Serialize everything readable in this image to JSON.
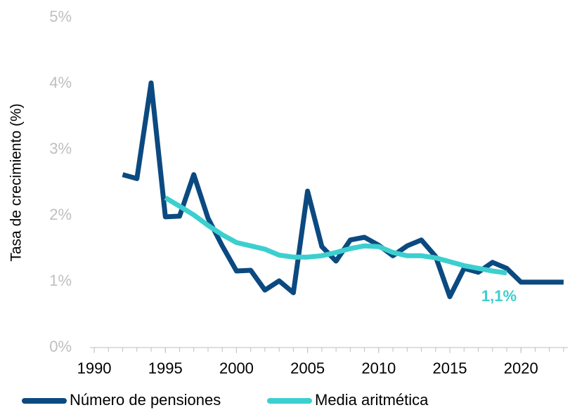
{
  "chart_data": {
    "type": "line",
    "y_label": "Tasa de crecimiento (%)",
    "x": [
      1992,
      1993,
      1994,
      1995,
      1996,
      1997,
      1998,
      1999,
      2000,
      2001,
      2002,
      2003,
      2004,
      2005,
      2006,
      2007,
      2008,
      2009,
      2010,
      2011,
      2012,
      2013,
      2014,
      2015,
      2016,
      2017,
      2018,
      2019,
      2020,
      2021,
      2022,
      2023
    ],
    "series": [
      {
        "name": "Número de pensiones",
        "color": "#0b4a80",
        "values": [
          2.62,
          2.56,
          4.01,
          1.98,
          1.99,
          2.62,
          1.96,
          1.54,
          1.16,
          1.17,
          0.87,
          1.01,
          0.83,
          2.37,
          1.53,
          1.31,
          1.63,
          1.67,
          1.55,
          1.39,
          1.54,
          1.63,
          1.38,
          0.77,
          1.2,
          1.14,
          1.29,
          1.2,
          0.99,
          0.99,
          0.99,
          0.99
        ]
      },
      {
        "name": "Media aritmética",
        "color": "#3ccfcf",
        "values": [
          null,
          null,
          null,
          2.27,
          2.14,
          2.01,
          1.85,
          1.71,
          1.59,
          1.54,
          1.49,
          1.4,
          1.37,
          1.37,
          1.39,
          1.44,
          1.5,
          1.54,
          1.53,
          1.44,
          1.39,
          1.39,
          1.36,
          1.3,
          1.24,
          1.2,
          1.16,
          1.13,
          null,
          null,
          null,
          null
        ]
      }
    ],
    "annotations": [
      {
        "text": "1,1%",
        "color": "#3ccfcf"
      }
    ],
    "xlim": [
      1989.7,
      2023.3
    ],
    "xticks": [
      1990,
      1995,
      2000,
      2005,
      2010,
      2015,
      2020
    ],
    "xminorticks": [
      1990,
      1991,
      1992,
      1993,
      1994,
      1995,
      1996,
      1997,
      1998,
      1999,
      2000,
      2001,
      2002,
      2003,
      2004,
      2005,
      2006,
      2007,
      2008,
      2009,
      2010,
      2011,
      2012,
      2013,
      2014,
      2015,
      2016,
      2017,
      2018,
      2019,
      2020,
      2021,
      2022,
      2023
    ],
    "ylim": [
      0,
      5
    ],
    "yticks": [
      {
        "value": 0,
        "label": "0%"
      },
      {
        "value": 1,
        "label": "1%"
      },
      {
        "value": 2,
        "label": "2%"
      },
      {
        "value": 3,
        "label": "3%"
      },
      {
        "value": 4,
        "label": "4%"
      },
      {
        "value": 5,
        "label": "5%"
      }
    ],
    "grid": false,
    "legend": "bottom"
  }
}
